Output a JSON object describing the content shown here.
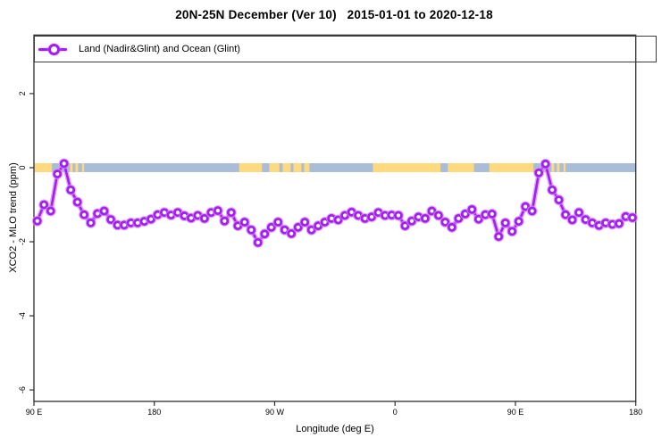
{
  "title": "20N-25N December (Ver 10)   2015-01-01 to 2020-12-18",
  "legend": {
    "label": "Land (Nadir&Glint) and Ocean (Glint)",
    "position": "top-left"
  },
  "axes": {
    "x": {
      "label": "Longitude (deg E)",
      "ticks": [
        {
          "lon": 90,
          "label": "90 E"
        },
        {
          "lon": 180,
          "label": "180"
        },
        {
          "lon": 270,
          "label": "90 W"
        },
        {
          "lon": 360,
          "label": "0"
        },
        {
          "lon": 450,
          "label": "90 E"
        },
        {
          "lon": 540,
          "label": "180"
        }
      ]
    },
    "y": {
      "label": "XCO2 - MLO trend (ppm)",
      "ticks": [
        {
          "value": 2,
          "label": "2"
        },
        {
          "value": 0,
          "label": "0"
        },
        {
          "value": -2,
          "label": "-2"
        },
        {
          "value": -4,
          "label": "-4"
        },
        {
          "value": -6,
          "label": "-6"
        }
      ]
    }
  },
  "chart_data": {
    "type": "line",
    "title": "20N-25N December (Ver 10)   2015-01-01 to 2020-12-18",
    "xlabel": "Longitude (deg E)",
    "ylabel": "XCO2 - MLO trend (ppm)",
    "xlim": [
      90,
      540
    ],
    "ylim": [
      -6.31,
      3.58
    ],
    "grid": false,
    "legend_position": "top-left",
    "x_axis_note": "longitude axis wraps around the globe: 90E -> 180 -> 90W -> 0 -> 90E -> 180; values above 180 are degE+360",
    "series": [
      {
        "name": "Land (Nadir&Glint) and Ocean (Glint)",
        "marker": "open-circle",
        "x": [
          92.5,
          97.5,
          102.5,
          107.5,
          112.5,
          117.5,
          122.5,
          127.5,
          132.5,
          137.5,
          142.5,
          147.5,
          152.5,
          157.5,
          162.5,
          167.5,
          172.5,
          177.5,
          182.5,
          187.5,
          192.5,
          197.5,
          202.5,
          207.5,
          212.5,
          217.5,
          222.5,
          227.5,
          232.5,
          237.5,
          242.5,
          247.5,
          252.5,
          257.5,
          262.5,
          267.5,
          272.5,
          277.5,
          282.5,
          287.5,
          292.5,
          297.5,
          302.5,
          307.5,
          312.5,
          317.5,
          322.5,
          327.5,
          332.5,
          337.5,
          342.5,
          347.5,
          352.5,
          357.5,
          362.5,
          367.5,
          372.5,
          377.5,
          382.5,
          387.5,
          392.5,
          397.5,
          402.5,
          407.5,
          412.5,
          417.5,
          422.5,
          427.5,
          432.5,
          437.5,
          442.5,
          447.5,
          452.5,
          457.5,
          462.5,
          467.5,
          472.5,
          477.5,
          482.5,
          487.5,
          492.5,
          497.5,
          502.5,
          507.5,
          512.5,
          517.5,
          522.5,
          527.5,
          532.5,
          537.5
        ],
        "values": [
          -1.44,
          -1.0,
          -1.17,
          -0.17,
          0.11,
          -0.6,
          -0.93,
          -1.27,
          -1.49,
          -1.24,
          -1.17,
          -1.4,
          -1.55,
          -1.55,
          -1.49,
          -1.49,
          -1.45,
          -1.39,
          -1.27,
          -1.21,
          -1.28,
          -1.21,
          -1.3,
          -1.36,
          -1.29,
          -1.37,
          -1.21,
          -1.16,
          -1.44,
          -1.21,
          -1.57,
          -1.47,
          -1.68,
          -2.02,
          -1.79,
          -1.61,
          -1.47,
          -1.68,
          -1.78,
          -1.61,
          -1.47,
          -1.68,
          -1.57,
          -1.47,
          -1.37,
          -1.41,
          -1.29,
          -1.2,
          -1.29,
          -1.37,
          -1.33,
          -1.21,
          -1.29,
          -1.28,
          -1.29,
          -1.57,
          -1.44,
          -1.33,
          -1.37,
          -1.17,
          -1.29,
          -1.47,
          -1.61,
          -1.37,
          -1.25,
          -1.13,
          -1.39,
          -1.27,
          -1.25,
          -1.86,
          -1.49,
          -1.72,
          -1.45,
          -1.05,
          -1.17,
          -0.14,
          0.1,
          -0.6,
          -0.87,
          -1.27,
          -1.41,
          -1.21,
          -1.4,
          -1.49,
          -1.56,
          -1.49,
          -1.53,
          -1.51,
          -1.32,
          -1.35
        ]
      }
    ]
  },
  "map_band": {
    "description": "land/ocean strip drawn along y=0",
    "y_center": 0,
    "half_height_ppm": 0.12,
    "land_segments_lon": [
      [
        90,
        103.5
      ],
      [
        117,
        119
      ],
      [
        121,
        123
      ],
      [
        126,
        127.5
      ],
      [
        243.5,
        260.5
      ],
      [
        266,
        273.5
      ],
      [
        276,
        282
      ],
      [
        284,
        290
      ],
      [
        292,
        296
      ],
      [
        343.5,
        394
      ],
      [
        399.5,
        419
      ],
      [
        430.5,
        463.5
      ],
      [
        477,
        479
      ],
      [
        481,
        483
      ],
      [
        486,
        487.5
      ]
    ]
  },
  "colors": {
    "series": "#A020F0",
    "series_halo": "#D98CF5",
    "marker_fill": "#FFFFFF",
    "land": "#FFD97E",
    "ocean": "#A9BCD8",
    "axis": "#2E2E2E",
    "background": "#FFFFFF"
  }
}
